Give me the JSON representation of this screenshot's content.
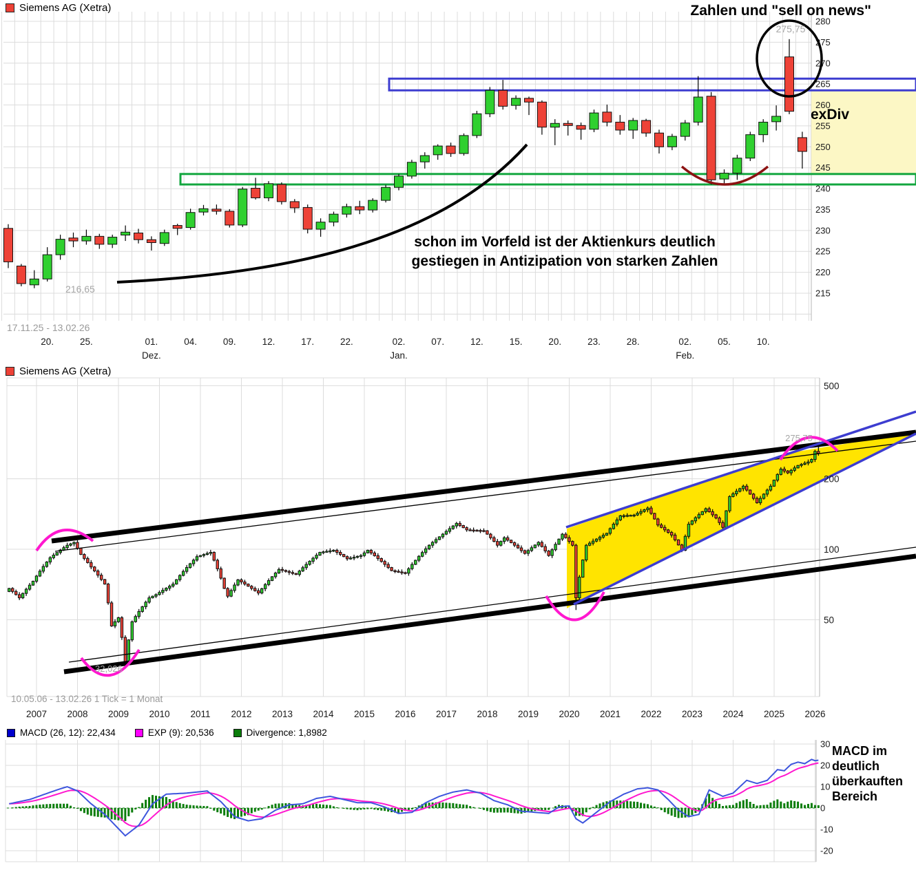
{
  "colors": {
    "candle_up": "#2fd02f",
    "candle_down": "#ee4237",
    "candle_border": "#111111",
    "blue_line": "#3d3dd0",
    "green_line": "#12a63e",
    "yellow_zone_daily": "#fcf7c5",
    "yellow_wedge": "#ffe400",
    "magenta": "#ff17cf",
    "macd_line": "#3d55dd",
    "signal_line": "#ff17cf",
    "histogram": "#0b7d0b",
    "dark_red_arc": "#8c1212",
    "black_line": "#000000",
    "gray_label": "#a6a6a6",
    "grid": "#dcdcdc",
    "axis_line": "#b5b5b5",
    "axis_text": "#1a1a1a"
  },
  "chart_data": [
    {
      "type": "candlestick",
      "id": "daily",
      "legend": "Siemens AG (Xetra)",
      "period": "17.11.25 - 13.02.26",
      "ylim": [
        212,
        282
      ],
      "y_ticks": [
        280,
        275,
        270,
        265,
        260,
        255,
        250,
        245,
        240,
        235,
        230,
        225,
        220,
        215
      ],
      "x_ticks": [
        {
          "i": 3,
          "label": "20."
        },
        {
          "i": 6,
          "label": "25."
        },
        {
          "i": 11,
          "label": "01.",
          "month": "Dez."
        },
        {
          "i": 14,
          "label": "04."
        },
        {
          "i": 17,
          "label": "09."
        },
        {
          "i": 20,
          "label": "12."
        },
        {
          "i": 23,
          "label": "17."
        },
        {
          "i": 26,
          "label": "22."
        },
        {
          "i": 30,
          "label": "02.",
          "month": "Jan."
        },
        {
          "i": 33,
          "label": "07."
        },
        {
          "i": 36,
          "label": "12."
        },
        {
          "i": 39,
          "label": "15."
        },
        {
          "i": 42,
          "label": "20."
        },
        {
          "i": 45,
          "label": "23."
        },
        {
          "i": 48,
          "label": "28."
        },
        {
          "i": 52,
          "label": "02.",
          "month": "Feb."
        },
        {
          "i": 55,
          "label": "05."
        },
        {
          "i": 58,
          "label": "10."
        }
      ],
      "candles": [
        [
          230.5,
          231.5,
          221.0,
          222.5
        ],
        [
          221.5,
          222.0,
          216.65,
          217.3
        ],
        [
          217.0,
          220.5,
          216.2,
          218.4
        ],
        [
          218.4,
          226.0,
          217.8,
          224.2
        ],
        [
          224.2,
          229.0,
          223.0,
          227.9
        ],
        [
          228.2,
          229.5,
          226.0,
          227.5
        ],
        [
          227.5,
          230.2,
          226.6,
          228.6
        ],
        [
          228.6,
          229.2,
          225.6,
          226.7
        ],
        [
          226.7,
          229.0,
          225.8,
          228.4
        ],
        [
          228.9,
          231.2,
          227.5,
          229.6
        ],
        [
          229.4,
          230.4,
          226.9,
          227.8
        ],
        [
          227.8,
          228.6,
          225.2,
          227.1
        ],
        [
          226.9,
          230.2,
          226.3,
          229.5
        ],
        [
          231.2,
          231.6,
          228.9,
          230.5
        ],
        [
          230.7,
          235.2,
          230.2,
          234.3
        ],
        [
          234.4,
          236.1,
          233.6,
          235.2
        ],
        [
          235.1,
          236.2,
          233.8,
          234.6
        ],
        [
          234.6,
          235.1,
          230.7,
          231.3
        ],
        [
          231.3,
          240.4,
          230.8,
          239.9
        ],
        [
          240.1,
          242.6,
          237.4,
          237.8
        ],
        [
          237.8,
          241.8,
          237.0,
          241.2
        ],
        [
          241.0,
          241.5,
          236.2,
          236.9
        ],
        [
          236.9,
          237.5,
          234.2,
          235.4
        ],
        [
          235.5,
          236.2,
          229.3,
          230.3
        ],
        [
          230.3,
          232.9,
          228.5,
          232.0
        ],
        [
          232.0,
          234.5,
          231.0,
          233.9
        ],
        [
          233.9,
          236.4,
          233.1,
          235.7
        ],
        [
          235.7,
          237.1,
          233.9,
          234.9
        ],
        [
          234.9,
          237.7,
          234.3,
          237.2
        ],
        [
          237.2,
          240.9,
          236.7,
          240.3
        ],
        [
          240.3,
          243.5,
          239.6,
          243.0
        ],
        [
          243.0,
          246.9,
          242.4,
          246.3
        ],
        [
          246.4,
          248.7,
          244.8,
          247.9
        ],
        [
          248.1,
          250.6,
          246.9,
          250.2
        ],
        [
          250.2,
          251.0,
          247.6,
          248.4
        ],
        [
          248.4,
          253.2,
          247.9,
          252.7
        ],
        [
          252.7,
          258.6,
          252.1,
          257.9
        ],
        [
          257.9,
          264.3,
          257.1,
          263.5
        ],
        [
          263.5,
          266.0,
          258.9,
          259.7
        ],
        [
          259.9,
          262.3,
          258.9,
          261.6
        ],
        [
          261.6,
          262.0,
          257.6,
          260.7
        ],
        [
          260.7,
          261.1,
          252.9,
          254.7
        ],
        [
          254.7,
          256.6,
          250.4,
          255.6
        ],
        [
          255.6,
          256.3,
          252.7,
          255.1
        ],
        [
          255.1,
          255.8,
          251.7,
          254.2
        ],
        [
          254.2,
          258.9,
          253.5,
          258.1
        ],
        [
          258.3,
          260.1,
          254.9,
          255.9
        ],
        [
          255.9,
          257.6,
          252.9,
          254.0
        ],
        [
          254.0,
          256.9,
          251.9,
          256.3
        ],
        [
          256.3,
          256.7,
          252.4,
          253.3
        ],
        [
          253.3,
          254.1,
          248.4,
          250.0
        ],
        [
          250.0,
          253.1,
          249.2,
          252.5
        ],
        [
          252.5,
          256.4,
          251.5,
          255.7
        ],
        [
          255.9,
          266.9,
          255.1,
          261.9
        ],
        [
          262.1,
          263.1,
          241.0,
          242.1
        ],
        [
          242.3,
          244.6,
          240.8,
          243.7
        ],
        [
          243.7,
          248.1,
          242.1,
          247.3
        ],
        [
          247.3,
          253.6,
          246.6,
          252.9
        ],
        [
          252.9,
          256.6,
          251.1,
          255.9
        ],
        [
          256.0,
          259.9,
          253.9,
          257.3
        ],
        [
          271.5,
          275.75,
          257.8,
          258.5
        ],
        [
          252.2,
          253.6,
          244.8,
          248.9
        ]
      ],
      "low_label": {
        "text": "216,65",
        "value": 216.65
      },
      "high_label": {
        "text": "275,75",
        "value": 275.75
      },
      "annotations": {
        "headline": "Zahlen und \"sell on news\"",
        "exdiv": "exDiv",
        "note": [
          "schon im Vorfeld ist der Aktienkurs deutlich",
          "gestiegen in Antizipation von starken Zahlen"
        ]
      },
      "overlays": {
        "blue_box_prices": [
          263.5,
          266.3
        ],
        "green_band_prices": [
          241.0,
          243.5
        ],
        "yellow_zone_prices": [
          243.5,
          263.5
        ],
        "highlight_circle_candle": 60
      }
    },
    {
      "type": "candlestick",
      "id": "monthly",
      "legend": "Siemens AG (Xetra)",
      "period": "10.05.06 - 13.02.26",
      "tick_note": "1 Tick = 1 Monat",
      "footer": "10.05.06 - 13.02.26   1 Tick = 1 Monat",
      "scale": "log",
      "y_ticks": [
        500,
        200,
        100,
        50
      ],
      "years": [
        "2007",
        "2008",
        "2009",
        "2010",
        "2011",
        "2012",
        "2013",
        "2014",
        "2015",
        "2016",
        "2017",
        "2018",
        "2019",
        "2020",
        "2021",
        "2022",
        "2023",
        "2024",
        "2025",
        "2026"
      ],
      "close_anchors": [
        [
          0,
          68
        ],
        [
          3,
          62
        ],
        [
          7,
          73
        ],
        [
          12,
          92
        ],
        [
          17,
          104
        ],
        [
          19,
          107
        ],
        [
          21,
          95
        ],
        [
          24,
          84
        ],
        [
          28,
          71
        ],
        [
          30,
          47
        ],
        [
          32,
          51
        ],
        [
          34,
          33
        ],
        [
          36,
          49
        ],
        [
          41,
          62
        ],
        [
          43,
          64
        ],
        [
          48,
          71
        ],
        [
          55,
          93
        ],
        [
          59,
          97
        ],
        [
          63,
          68
        ],
        [
          64,
          63
        ],
        [
          67,
          74
        ],
        [
          73,
          65
        ],
        [
          79,
          82
        ],
        [
          84,
          78
        ],
        [
          91,
          97
        ],
        [
          95,
          99
        ],
        [
          99,
          91
        ],
        [
          103,
          94
        ],
        [
          105,
          99
        ],
        [
          112,
          81
        ],
        [
          116,
          79
        ],
        [
          123,
          104
        ],
        [
          127,
          116
        ],
        [
          131,
          129
        ],
        [
          134,
          121
        ],
        [
          139,
          120
        ],
        [
          143,
          104
        ],
        [
          145,
          112
        ],
        [
          151,
          96
        ],
        [
          155,
          107
        ],
        [
          158,
          94
        ],
        [
          162,
          116
        ],
        [
          165,
          104
        ],
        [
          166,
          62
        ],
        [
          169,
          104
        ],
        [
          175,
          117
        ],
        [
          179,
          139
        ],
        [
          183,
          140
        ],
        [
          187,
          150
        ],
        [
          190,
          127
        ],
        [
          194,
          115
        ],
        [
          197,
          99
        ],
        [
          199,
          128
        ],
        [
          204,
          149
        ],
        [
          207,
          136
        ],
        [
          209,
          124
        ],
        [
          211,
          168
        ],
        [
          215,
          186
        ],
        [
          219,
          158
        ],
        [
          223,
          186
        ],
        [
          226,
          220
        ],
        [
          228,
          212
        ],
        [
          231,
          228
        ],
        [
          234,
          236
        ],
        [
          235,
          242
        ],
        [
          236,
          262
        ],
        [
          237,
          257
        ]
      ],
      "overrides": {
        "19": {
          "high": 108
        },
        "34": {
          "low": 32.026
        },
        "166": {
          "low": 55
        },
        "237": {
          "high": 275.75,
          "low": 251
        }
      },
      "low_label": {
        "text": "32,026",
        "value": 32.026
      },
      "high_label": {
        "text": "275,75",
        "value": 275.75
      }
    },
    {
      "type": "line+bar",
      "id": "macd",
      "legend": [
        {
          "label": "MACD (26, 12): 22,434",
          "color": "#0000cc"
        },
        {
          "label": "EXP (9): 20,536",
          "color": "#ff00ff"
        },
        {
          "label": "Divergence: 1,8982",
          "color": "#0b7d0b"
        }
      ],
      "y_ticks": [
        30,
        20,
        10,
        0,
        -10,
        -20
      ],
      "macd_anchors": [
        [
          0,
          2
        ],
        [
          6,
          4
        ],
        [
          14,
          8.5
        ],
        [
          17,
          10
        ],
        [
          20,
          8
        ],
        [
          24,
          2
        ],
        [
          28,
          -3
        ],
        [
          31,
          -8
        ],
        [
          34,
          -13
        ],
        [
          38,
          -8
        ],
        [
          42,
          2
        ],
        [
          46,
          6.5
        ],
        [
          52,
          7
        ],
        [
          58,
          8
        ],
        [
          62,
          3
        ],
        [
          66,
          -4
        ],
        [
          70,
          -6
        ],
        [
          74,
          -5
        ],
        [
          78,
          -1
        ],
        [
          82,
          1.5
        ],
        [
          86,
          2
        ],
        [
          90,
          4.5
        ],
        [
          94,
          5.5
        ],
        [
          98,
          4
        ],
        [
          102,
          2.5
        ],
        [
          106,
          2.5
        ],
        [
          110,
          0.5
        ],
        [
          114,
          -2.5
        ],
        [
          118,
          -2
        ],
        [
          122,
          2.5
        ],
        [
          126,
          5.5
        ],
        [
          130,
          7.5
        ],
        [
          134,
          8.5
        ],
        [
          138,
          7
        ],
        [
          142,
          3.5
        ],
        [
          146,
          1.5
        ],
        [
          150,
          -1.5
        ],
        [
          154,
          -2
        ],
        [
          158,
          -2.5
        ],
        [
          161,
          0.5
        ],
        [
          164,
          1
        ],
        [
          166,
          -5
        ],
        [
          168,
          -7
        ],
        [
          172,
          -2
        ],
        [
          176,
          3
        ],
        [
          180,
          6.5
        ],
        [
          184,
          9
        ],
        [
          187,
          9.5
        ],
        [
          190,
          8.5
        ],
        [
          193,
          4
        ],
        [
          196,
          -1
        ],
        [
          199,
          -4
        ],
        [
          202,
          -3
        ],
        [
          205,
          8.5
        ],
        [
          209,
          5.5
        ],
        [
          212,
          7
        ],
        [
          216,
          13
        ],
        [
          219,
          11.5
        ],
        [
          222,
          13
        ],
        [
          225,
          18
        ],
        [
          227,
          17.5
        ],
        [
          229,
          20.5
        ],
        [
          231,
          21.5
        ],
        [
          233,
          20.8
        ],
        [
          235,
          22.8
        ],
        [
          236,
          22.2
        ],
        [
          237,
          22.434
        ]
      ],
      "signal_ema_period": 9,
      "note": [
        "MACD im",
        "deutlich",
        "überkauften",
        "Bereich"
      ]
    }
  ]
}
